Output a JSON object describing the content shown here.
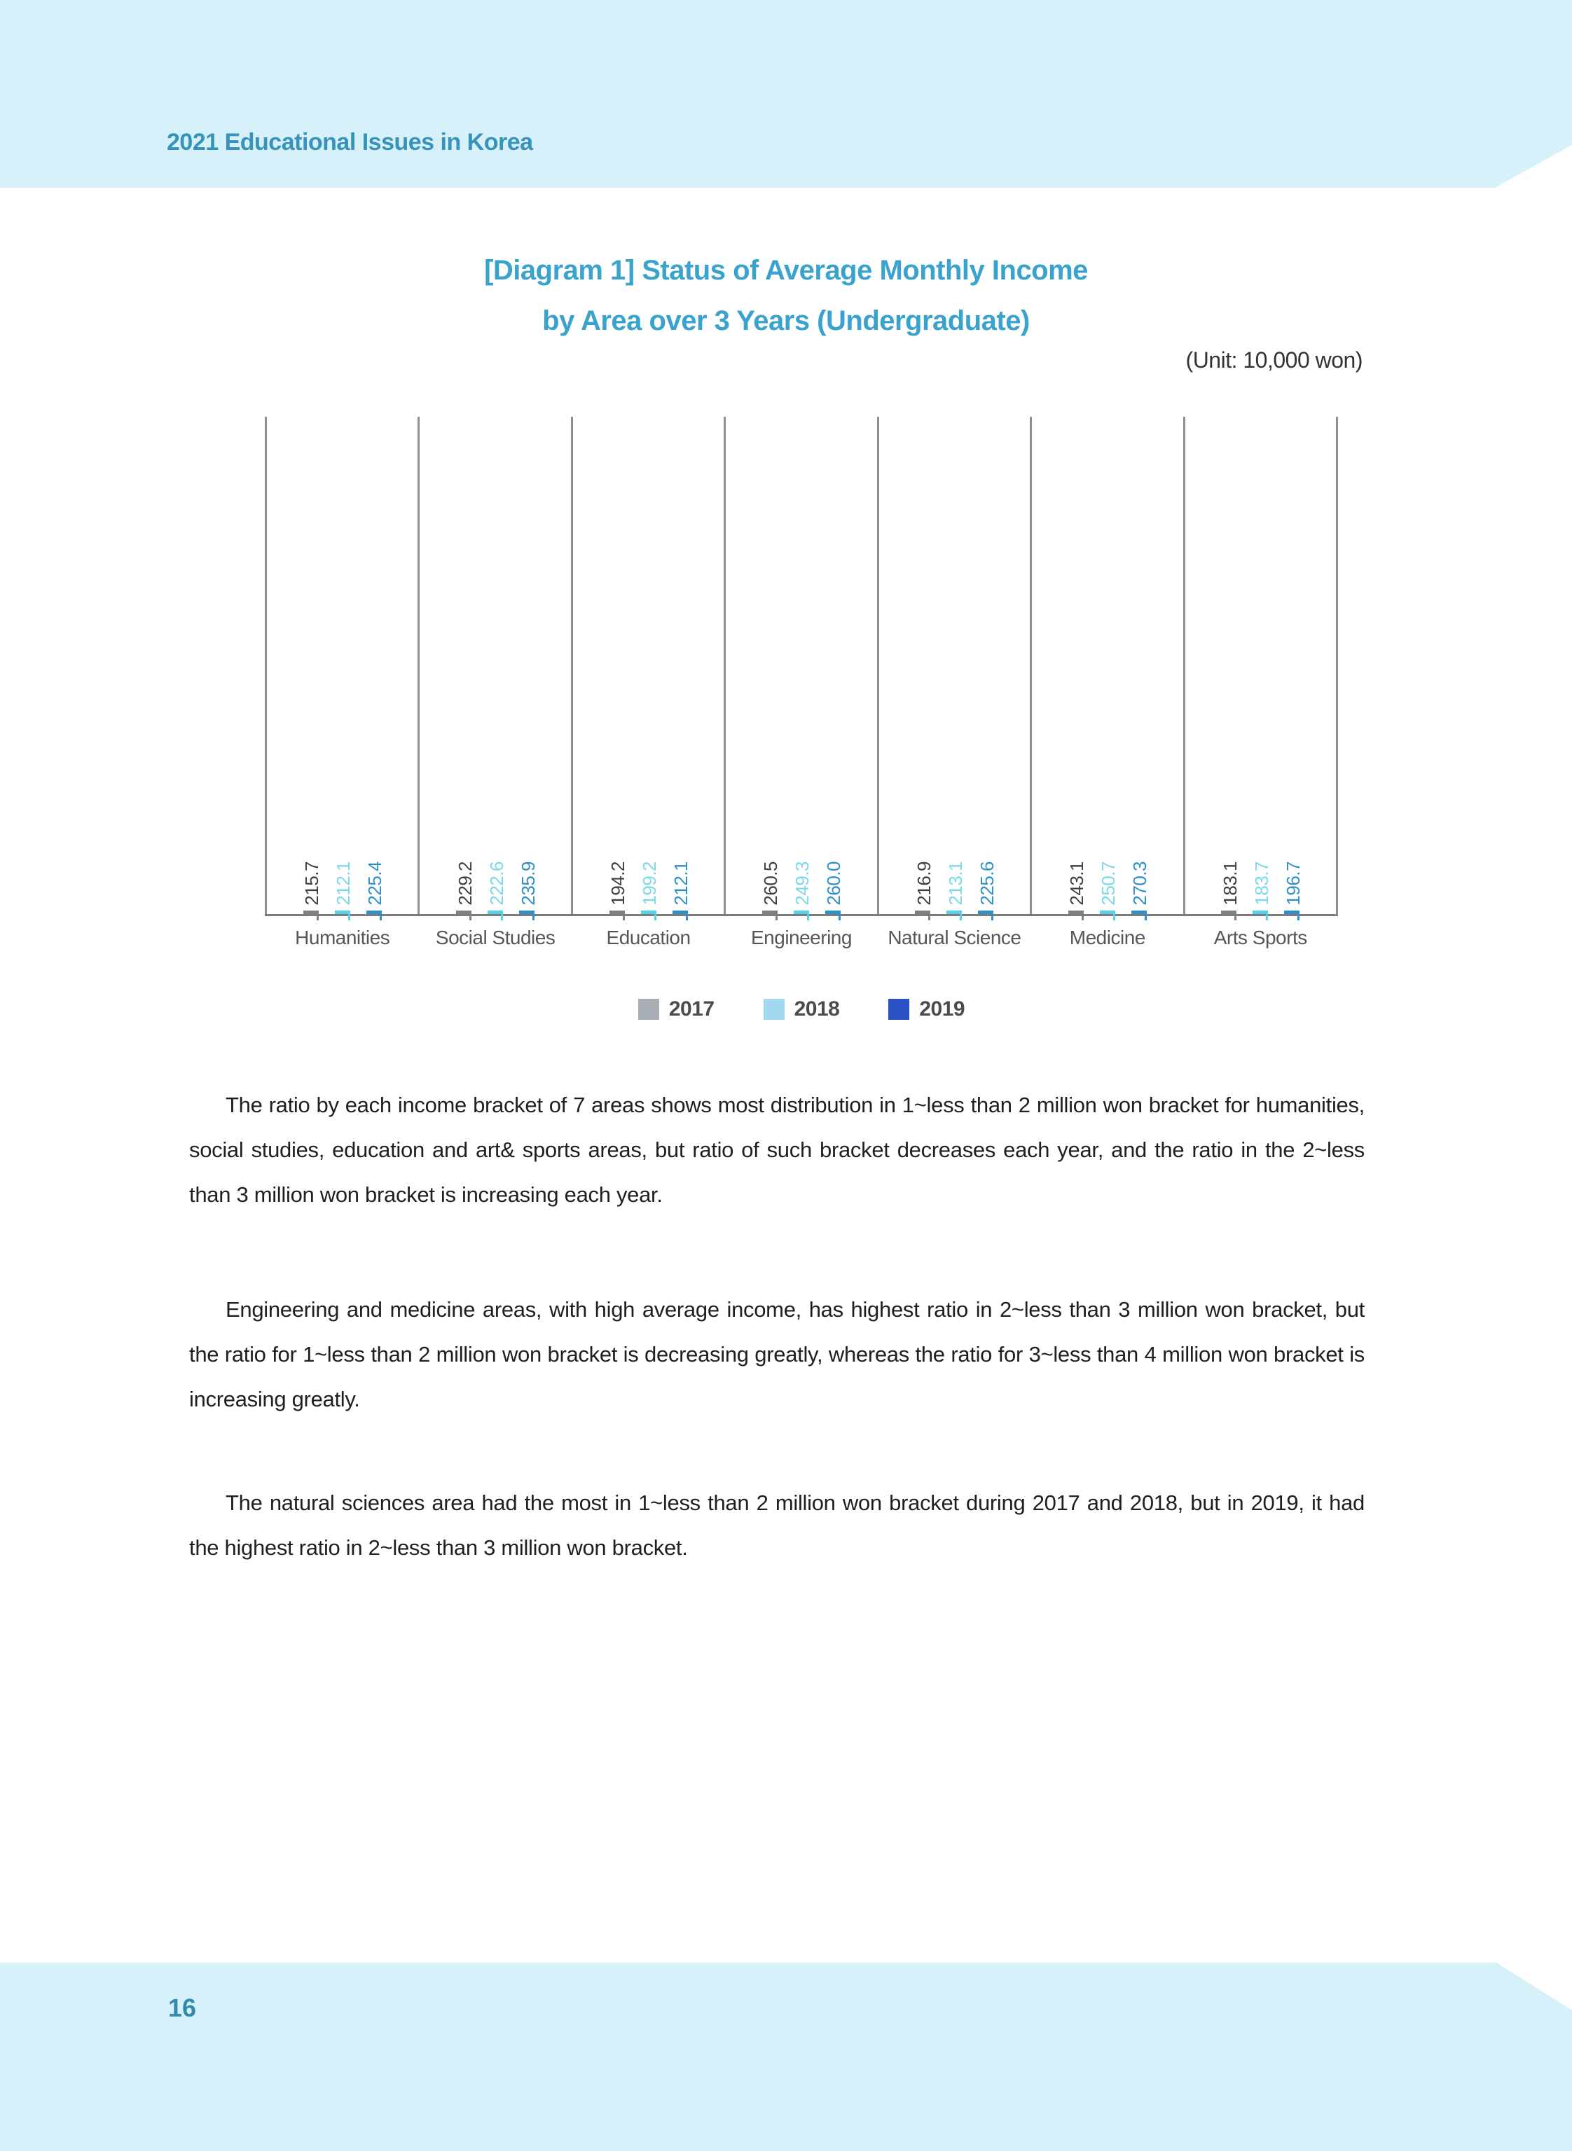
{
  "page": {
    "header": "2021 Educational Issues in Korea",
    "page_number": "16"
  },
  "title": {
    "line1": "[Diagram 1] Status of Average Monthly Income",
    "line2": "by Area over 3 Years (Undergraduate)"
  },
  "unit_note": "(Unit: 10,000 won)",
  "chart_data": {
    "type": "bar",
    "title": "[Diagram 1] Status of Average Monthly Income by Area over 3 Years (Undergraduate)",
    "unit": "10,000 won",
    "categories": [
      "Humanities",
      "Social Studies",
      "Education",
      "Engineering",
      "Natural Science",
      "Medicine",
      "Arts Sports"
    ],
    "series": [
      {
        "name": "2017",
        "values": [
          215.7,
          229.2,
          194.2,
          260.5,
          216.9,
          243.1,
          183.1
        ],
        "fill": "#e8e8e8",
        "stroke": "#808080",
        "label_color": "#3f3f3f",
        "legend_color": "#a7aeb5"
      },
      {
        "name": "2018",
        "values": [
          212.1,
          222.6,
          199.2,
          249.3,
          213.1,
          250.7,
          183.7
        ],
        "fill": "#eafbfd",
        "stroke": "#55d0e6",
        "label_color": "#7cd8ea",
        "legend_color": "#a2d9f0"
      },
      {
        "name": "2019",
        "values": [
          225.4,
          235.9,
          212.1,
          260.0,
          225.6,
          270.3,
          196.7
        ],
        "fill": "#d5e9f4",
        "stroke": "#2e90c6",
        "label_color": "#2e90c6",
        "legend_color": "#2a52c5"
      }
    ],
    "ylim": [
      0,
      300
    ],
    "grid": false,
    "legend_position": "bottom",
    "value_labels": "rotated-90-above-bars"
  },
  "paragraphs": {
    "p1": "The ratio by each income bracket of 7 areas shows most distribution in 1~less than 2 million won bracket for humanities, social studies, education and art& sports areas, but ratio of such bracket decreases each year, and the ratio in the 2~less than 3 million won bracket is increasing each year.",
    "p2": "Engineering and medicine areas, with high average income, has highest ratio in 2~less than 3 million won bracket, but the ratio for 1~less than 2 million won bracket is decreasing greatly, whereas the ratio for 3~less than 4 million won bracket is increasing greatly.",
    "p3": "The natural sciences area had the most in 1~less than 2 million won bracket during 2017 and 2018, but in 2019, it had the highest ratio in 2~less than 3 million won bracket."
  }
}
